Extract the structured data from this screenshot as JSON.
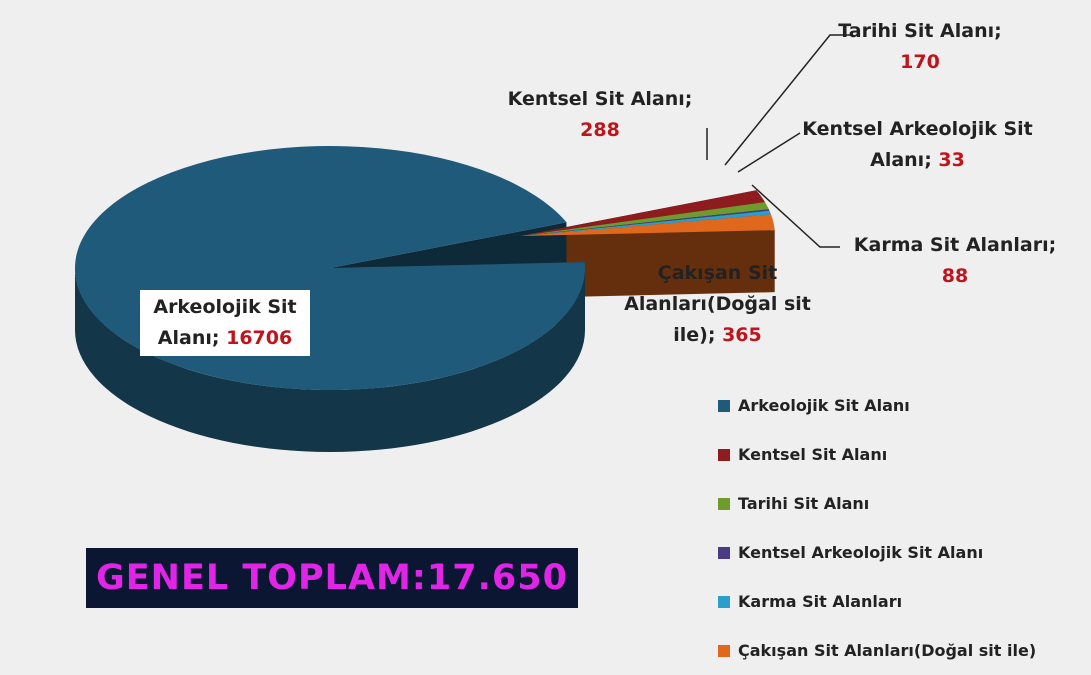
{
  "chart_data": {
    "type": "pie",
    "categories": [
      "Arkeolojik Sit Alanı",
      "Kentsel Sit Alanı",
      "Tarihi Sit Alanı",
      "Kentsel Arkeolojik Sit Alanı",
      "Karma Sit Alanları",
      "Çakışan Sit Alanları(Doğal sit ile)"
    ],
    "values": [
      16706,
      288,
      170,
      33,
      88,
      365
    ],
    "colors": [
      "#1f5a7a",
      "#8e1b1e",
      "#6f9a2c",
      "#4a3b82",
      "#2b9fc9",
      "#e0681c"
    ],
    "label_separator": ";",
    "total_label": "GENEL TOPLAM:17.650",
    "legend": true
  }
}
